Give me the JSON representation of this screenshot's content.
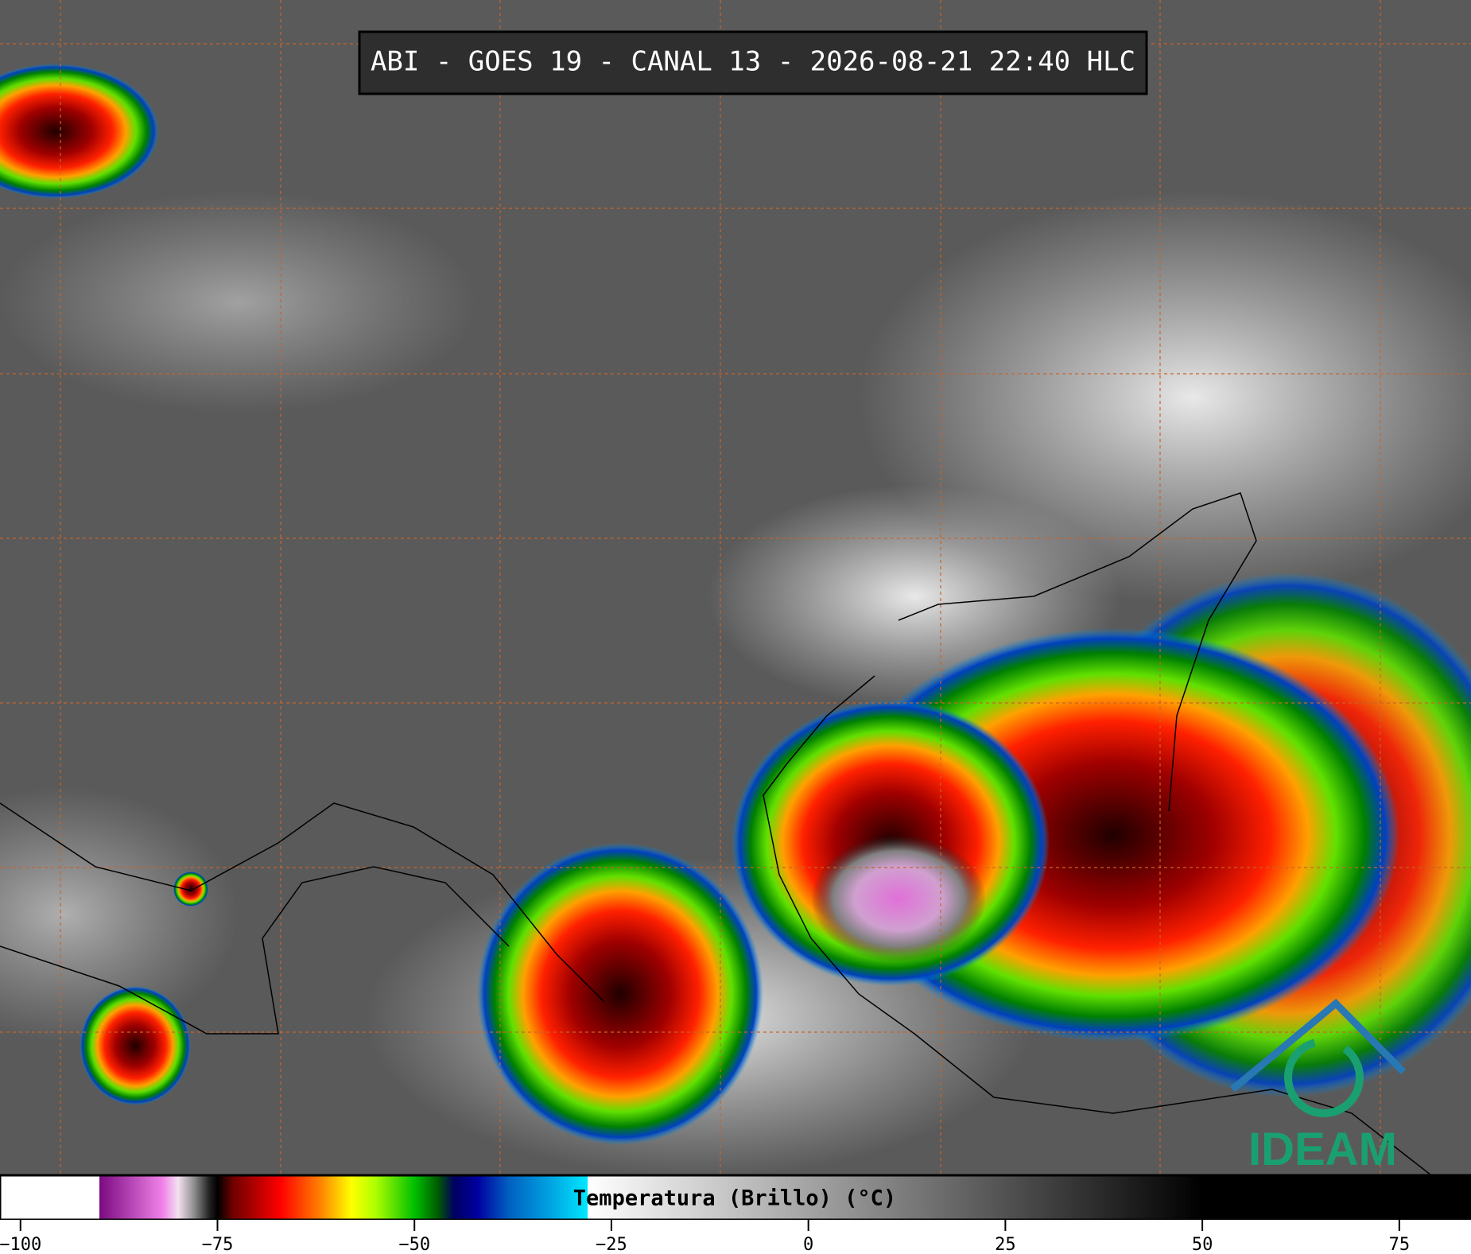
{
  "title": "ABI - GOES 19 - CANAL 13 - 2026-08-21 22:40 HLC",
  "logo": "IDEAM",
  "colorbar": {
    "label": "Temperatura (Brillo) (°C)",
    "xlim": [
      -102.6,
      84.1
    ],
    "xticks": [
      {
        "value": -100,
        "label": "−100"
      },
      {
        "value": -75,
        "label": "−75"
      },
      {
        "value": -50,
        "label": "−50"
      },
      {
        "value": -25,
        "label": "−25"
      },
      0,
      25,
      50,
      75
    ],
    "colormap": [
      {
        "value": -102.6,
        "color": "#ffffff"
      },
      {
        "value": -90,
        "color": "#ffffff"
      },
      {
        "value": -90,
        "color": "#7a0a80"
      },
      {
        "value": -82,
        "color": "#f080e8"
      },
      {
        "value": -80,
        "color": "#f4e0f0"
      },
      {
        "value": -78,
        "color": "#909090"
      },
      {
        "value": -76,
        "color": "#202020"
      },
      {
        "value": -75,
        "color": "#000000"
      },
      {
        "value": -73,
        "color": "#700000"
      },
      {
        "value": -67,
        "color": "#ff0000"
      },
      {
        "value": -62,
        "color": "#ff8000"
      },
      {
        "value": -58,
        "color": "#ffff00"
      },
      {
        "value": -55,
        "color": "#b0ff00"
      },
      {
        "value": -50,
        "color": "#00c000"
      },
      {
        "value": -47,
        "color": "#005a00"
      },
      {
        "value": -45,
        "color": "#000060"
      },
      {
        "value": -42,
        "color": "#0000a0"
      },
      {
        "value": -38,
        "color": "#0060c0"
      },
      {
        "value": -33,
        "color": "#00a0e0"
      },
      {
        "value": -28,
        "color": "#00e8ff"
      },
      {
        "value": -28,
        "color": "#ffffff"
      },
      {
        "value": 50,
        "color": "#000000"
      },
      {
        "value": 84.1,
        "color": "#000000"
      }
    ]
  }
}
